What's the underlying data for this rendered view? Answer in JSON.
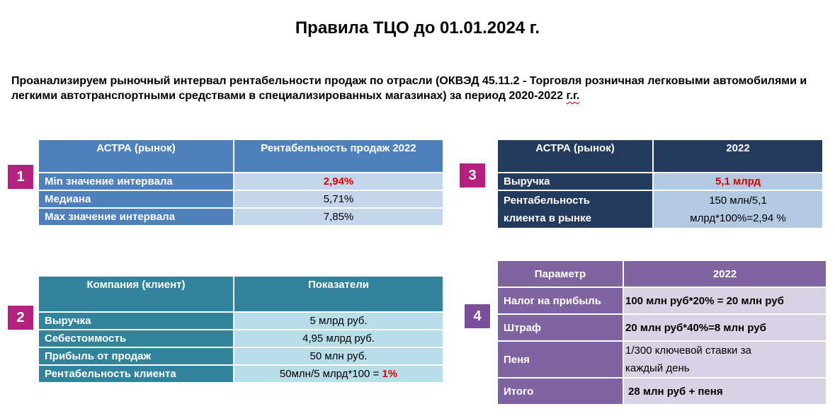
{
  "title": "Правила ТЦО до 01.01.2024 г.",
  "intro": {
    "text_main": "Проанализируем рыночный интервал рентабельности продаж по отрасли (ОКВЭД 45.11.2 - Торговля розничная легковыми автомобилями и легкими автотранспортными средствами в специализированных магазинах) за период 2020-2022 ",
    "text_underlined": "г.г."
  },
  "badges": {
    "b1": "1",
    "b2": "2",
    "b3": "3",
    "b4": "4",
    "colors": {
      "b1": "#b5217e",
      "b2": "#b5217e",
      "b3": "#b5217e",
      "b4": "#7a4e9a"
    }
  },
  "table1": {
    "headers": [
      "АСТРА (рынок)",
      "Рентабельность продаж 2022"
    ],
    "rows": [
      {
        "label": "Min значение интервала",
        "value": "2,94%"
      },
      {
        "label": "Медиана",
        "value": "5,71%"
      },
      {
        "label": "Max значение интервала",
        "value": "7,85%"
      }
    ]
  },
  "table2": {
    "headers": [
      "Компания (клиент)",
      "Показатели"
    ],
    "rows": [
      {
        "label": "Выручка",
        "value": "5 млрд руб."
      },
      {
        "label": "Себестоимость",
        "value": "4,95 млрд руб."
      },
      {
        "label": "Прибыль от продаж",
        "value": "50 млн руб."
      },
      {
        "label": "Рентабельность клиента",
        "value": "50млн/5 млрд*100 = ",
        "value_highlight": "1%"
      }
    ]
  },
  "table3": {
    "headers": [
      "АСТРА (рынок)",
      "2022"
    ],
    "rows": [
      {
        "label": "Выручка",
        "value": "5,1 млрд"
      },
      {
        "label_line1": "Рентабельность",
        "label_line2": "клиента  в рынке",
        "value_line1": "150 млн/5,1",
        "value_line2": "млрд*100%=2,94 %"
      }
    ]
  },
  "table4": {
    "headers": [
      "Параметр",
      "2022"
    ],
    "rows": [
      {
        "label": "Налог на прибыль",
        "value": "100 млн руб*20% = 20 млн руб"
      },
      {
        "label": "Штраф",
        "value": "20 млн руб*40%=8 млн руб"
      },
      {
        "label": "Пеня",
        "value_line1": "1/300 ключевой ставки за",
        "value_line2": "каждый день"
      },
      {
        "label": "Итого",
        "value": " 28 млн руб + пеня"
      }
    ]
  }
}
